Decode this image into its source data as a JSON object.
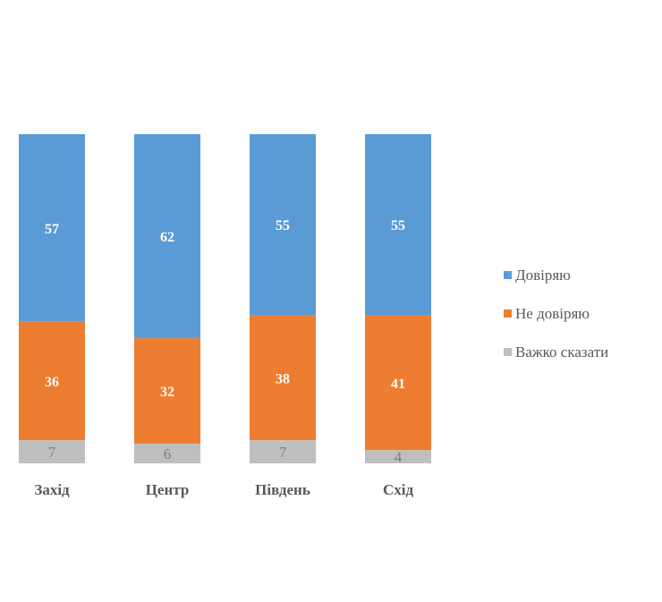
{
  "chart_data": {
    "type": "bar",
    "stacked": true,
    "categories": [
      "Захід",
      "Центр",
      "Південь",
      "Схід"
    ],
    "series": [
      {
        "name": "Довіряю",
        "values": [
          57,
          62,
          55,
          55
        ],
        "color": "#5b9bd5",
        "label_color": "#ffffff"
      },
      {
        "name": "Не довіряю",
        "values": [
          36,
          32,
          38,
          41
        ],
        "color": "#ed7d31",
        "label_color": "#ffffff"
      },
      {
        "name": "Важко сказати",
        "values": [
          7,
          6,
          7,
          4
        ],
        "color": "#bfbfbf",
        "label_color": "#7f7f7f"
      }
    ],
    "ylim": [
      0,
      100
    ],
    "grid": false,
    "legend_position": "right",
    "title": "",
    "xlabel": "",
    "ylabel": ""
  }
}
